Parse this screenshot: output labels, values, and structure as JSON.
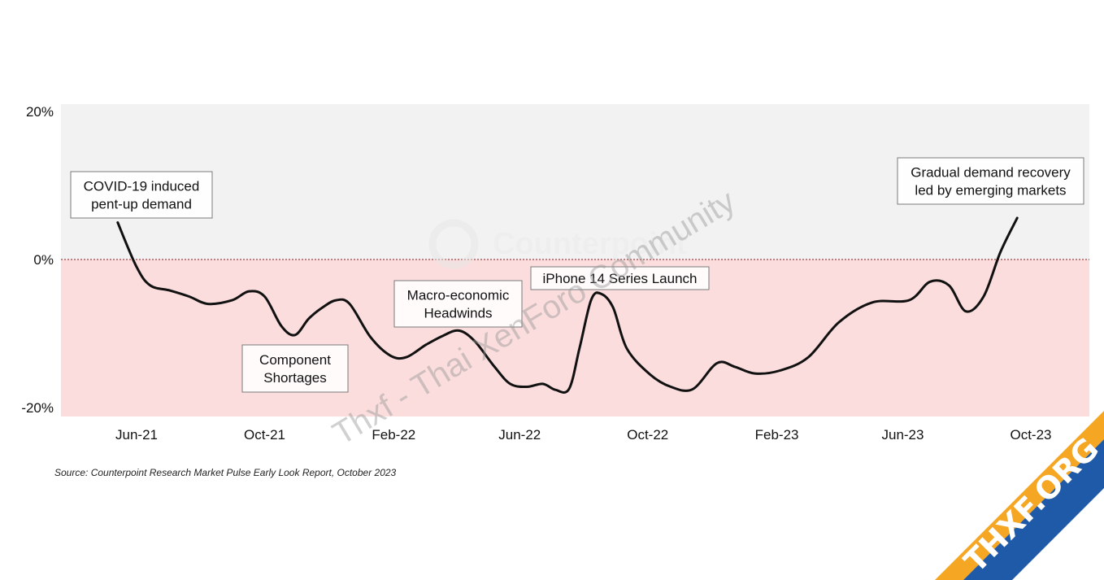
{
  "chart_data": {
    "type": "line",
    "ylim": [
      -20,
      20
    ],
    "y_ticks": [
      {
        "value": 20,
        "label": "20%"
      },
      {
        "value": 0,
        "label": "0%"
      },
      {
        "value": -20,
        "label": "-20%"
      }
    ],
    "x_ticks": [
      {
        "date": "2021-06",
        "label": "Jun-21"
      },
      {
        "date": "2021-10",
        "label": "Oct-21"
      },
      {
        "date": "2022-02",
        "label": "Feb-22"
      },
      {
        "date": "2022-06",
        "label": "Jun-22"
      },
      {
        "date": "2022-10",
        "label": "Oct-22"
      },
      {
        "date": "2023-02",
        "label": "Feb-23"
      },
      {
        "date": "2023-06",
        "label": "Jun-23"
      },
      {
        "date": "2023-10",
        "label": "Oct-23"
      }
    ],
    "series": [
      {
        "points": [
          [
            "2021-05-14",
            5.0
          ],
          [
            "2021-06-01",
            -1.0
          ],
          [
            "2021-06-14",
            -3.5
          ],
          [
            "2021-07-03",
            -4.2
          ],
          [
            "2021-07-21",
            -5.0
          ],
          [
            "2021-08-08",
            -6.0
          ],
          [
            "2021-08-31",
            -5.5
          ],
          [
            "2021-09-16",
            -4.3
          ],
          [
            "2021-10-01",
            -5.0
          ],
          [
            "2021-10-17",
            -9.0
          ],
          [
            "2021-10-30",
            -10.2
          ],
          [
            "2021-11-12",
            -8.0
          ],
          [
            "2021-11-25",
            -6.5
          ],
          [
            "2021-12-08",
            -5.5
          ],
          [
            "2021-12-21",
            -6.0
          ],
          [
            "2022-01-10",
            -10.5
          ],
          [
            "2022-01-29",
            -13.0
          ],
          [
            "2022-02-13",
            -13.2
          ],
          [
            "2022-03-04",
            -11.5
          ],
          [
            "2022-03-20",
            -10.3
          ],
          [
            "2022-04-04",
            -9.6
          ],
          [
            "2022-04-19",
            -11.0
          ],
          [
            "2022-05-08",
            -14.5
          ],
          [
            "2022-05-23",
            -16.8
          ],
          [
            "2022-06-08",
            -17.2
          ],
          [
            "2022-06-23",
            -16.8
          ],
          [
            "2022-07-05",
            -17.6
          ],
          [
            "2022-07-18",
            -17.5
          ],
          [
            "2022-07-28",
            -12.0
          ],
          [
            "2022-08-08",
            -5.5
          ],
          [
            "2022-08-17",
            -4.6
          ],
          [
            "2022-08-29",
            -6.5
          ],
          [
            "2022-09-11",
            -12.0
          ],
          [
            "2022-10-03",
            -15.5
          ],
          [
            "2022-10-23",
            -17.2
          ],
          [
            "2022-11-13",
            -17.5
          ],
          [
            "2022-12-06",
            -14.0
          ],
          [
            "2022-12-23",
            -14.5
          ],
          [
            "2023-01-11",
            -15.4
          ],
          [
            "2023-02-04",
            -15.0
          ],
          [
            "2023-03-03",
            -13.2
          ],
          [
            "2023-04-01",
            -8.5
          ],
          [
            "2023-05-03",
            -5.8
          ],
          [
            "2023-06-07",
            -5.5
          ],
          [
            "2023-06-27",
            -3.0
          ],
          [
            "2023-07-15",
            -3.5
          ],
          [
            "2023-07-31",
            -7.0
          ],
          [
            "2023-08-17",
            -5.0
          ],
          [
            "2023-09-02",
            1.0
          ],
          [
            "2023-09-18",
            5.6
          ]
        ]
      }
    ],
    "annotations": [
      {
        "lines": [
          "COVID-19 induced",
          "pent-up demand"
        ]
      },
      {
        "lines": [
          "Component",
          "Shortages"
        ]
      },
      {
        "lines": [
          "Macro-economic",
          "Headwinds"
        ]
      },
      {
        "lines": [
          "iPhone 14 Series Launch"
        ]
      },
      {
        "lines": [
          "Gradual demand recovery",
          "led by emerging markets"
        ]
      }
    ],
    "background_bands": {
      "positive": "#f2f2f2",
      "negative": "#fbdddd"
    },
    "zero_line_color": "#8b1a1a",
    "line_color": "#111111",
    "grid": false,
    "legend": "none"
  },
  "source": "Source: Counterpoint Research Market Pulse Early Look Report, October 2023",
  "watermark": {
    "text": "Thxf - Thai XenForo Community",
    "logo_text": "Counterpoint"
  },
  "badge": {
    "text": "THXF.ORG",
    "color": "#1e5aa8",
    "accent": "#f5a623"
  }
}
